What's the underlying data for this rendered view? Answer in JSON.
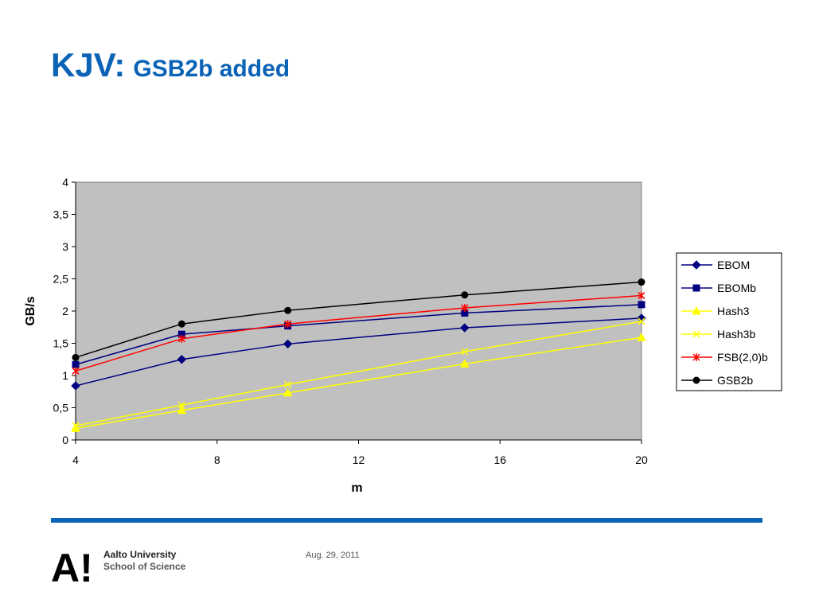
{
  "slide": {
    "title_main": "KJV:",
    "title_sub": "GSB2b added",
    "footer_date": "Aug. 29, 2011",
    "org_name": "Aalto University",
    "org_school": "School of Science",
    "logo_text": "A!"
  },
  "colors": {
    "title": "#0b63b6",
    "rule": "#0b63b6",
    "plot_background": "#c0c0c0"
  },
  "chart_data": {
    "type": "line",
    "title": "",
    "xlabel": "m",
    "ylabel": "GB/s",
    "xlim": [
      4,
      20
    ],
    "ylim": [
      0,
      4
    ],
    "x_ticks": [
      "4",
      "8",
      "12",
      "16",
      "20"
    ],
    "y_ticks": [
      "0",
      "0,5",
      "1",
      "1,5",
      "2",
      "2,5",
      "3",
      "3,5",
      "4"
    ],
    "grid": false,
    "legend_position": "right",
    "x": [
      4,
      7,
      10,
      15,
      20
    ],
    "series": [
      {
        "name": "EBOM",
        "color": "#000080",
        "marker": "diamond",
        "values": [
          0.84,
          1.25,
          1.49,
          1.74,
          1.89
        ]
      },
      {
        "name": "EBOMb",
        "color": "#000080",
        "marker": "square",
        "values": [
          1.17,
          1.64,
          1.77,
          1.97,
          2.1
        ]
      },
      {
        "name": "Hash3",
        "color": "#ffff00",
        "marker": "triangle",
        "values": [
          0.18,
          0.46,
          0.73,
          1.18,
          1.59
        ]
      },
      {
        "name": "Hash3b",
        "color": "#ffff00",
        "marker": "x",
        "values": [
          0.22,
          0.54,
          0.86,
          1.37,
          1.84
        ]
      },
      {
        "name": "FSB(2,0)b",
        "color": "#ff0000",
        "marker": "star",
        "values": [
          1.07,
          1.57,
          1.8,
          2.05,
          2.24
        ]
      },
      {
        "name": "GSB2b",
        "color": "#000000",
        "marker": "circle",
        "values": [
          1.28,
          1.8,
          2.01,
          2.25,
          2.45
        ]
      }
    ]
  }
}
